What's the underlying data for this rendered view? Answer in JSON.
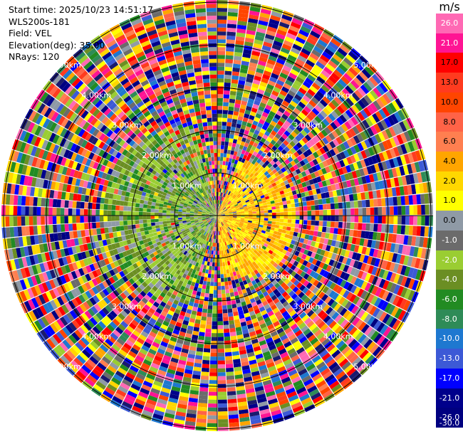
{
  "header": {
    "start_time": "Start time: 2025/10/23 14:51:17",
    "instrument": "WLS200s-181",
    "field": "Field: VEL",
    "elevation": "Elevation(deg): 35.00",
    "nrays": "NRays: 120"
  },
  "colorbar": {
    "unit": "m/s",
    "colors": [
      "#1a1a6e",
      "#000080",
      "#00008b",
      "#0000ff",
      "#3c59d6",
      "#1e78d0",
      "#2e8b57",
      "#228b22",
      "#6b8e23",
      "#9acd32",
      "#6b6b6b",
      "#8f9aa6",
      "#ffff00",
      "#ffd700",
      "#ffa500",
      "#ff7f50",
      "#ff6347",
      "#ff4500",
      "#ff3b1f",
      "#ff0000",
      "#ff1493",
      "#ff69b4"
    ],
    "ticks": [
      "26.0",
      "21.0",
      "17.0",
      "13.0",
      "10.0",
      "8.0",
      "6.0",
      "4.0",
      "2.0",
      "1.0",
      "0.0",
      "-1.0",
      "-2.0",
      "-4.0",
      "-6.0",
      "-8.0",
      "-10.0",
      "-13.0",
      "-17.0",
      "-21.0",
      "-26.0",
      "-30.0"
    ]
  },
  "chart_data": {
    "type": "ppi",
    "field": "VEL",
    "units": "m/s",
    "nrays": 120,
    "elevation_deg": 35.0,
    "range_rings_km": [
      1.0,
      2.0,
      3.0,
      4.0,
      5.0
    ],
    "range_ring_labels": [
      "1.00km",
      "2.00km",
      "3.00km",
      "4.00km",
      "5.00km"
    ],
    "sector_colors": {
      "west_near": "green (-6.0 to -2.0 m/s)",
      "east_near": "yellow/orange (2.0 to 6.0 m/s)",
      "north_near": "mixed noise",
      "outer": "mixed noise (all colors)"
    }
  }
}
